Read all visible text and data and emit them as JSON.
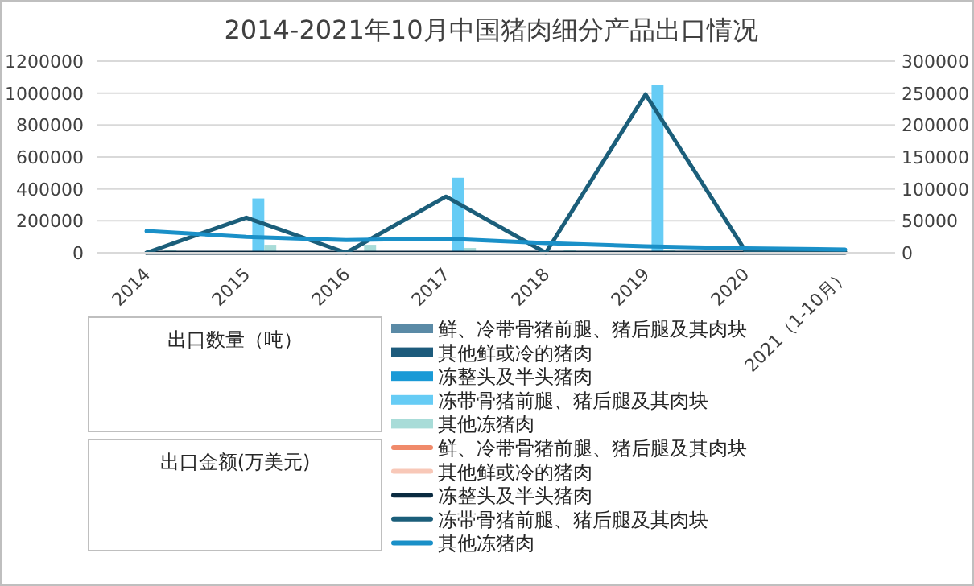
{
  "chart_data": {
    "type": "bar",
    "title": "2014-2021年10月中国猪肉细分产品出口情况",
    "categories": [
      "2014",
      "2015",
      "2016",
      "2017",
      "2018",
      "2019",
      "2020",
      "2021（1-10月）"
    ],
    "series": [
      {
        "name": "鲜、冷带骨猪前腿、猪后腿及其肉块",
        "color": "#5a8aa6",
        "axis": "y",
        "values": [
          0,
          0,
          0,
          0,
          0,
          0,
          0,
          0
        ]
      },
      {
        "name": "其他鲜或冷的猪肉",
        "color": "#1d5b7c",
        "axis": "y",
        "values": [
          0,
          0,
          0,
          0,
          0,
          0,
          0,
          0
        ]
      },
      {
        "name": "冻整头及半头猪肉",
        "color": "#1a9ad6",
        "axis": "y",
        "values": [
          0,
          0,
          0,
          0,
          0,
          0,
          0,
          0
        ]
      },
      {
        "name": "冻带骨猪前腿、猪后腿及其肉块",
        "color": "#66ccf5",
        "axis": "y",
        "values": [
          0,
          340000,
          0,
          470000,
          0,
          1050000,
          0,
          0
        ]
      },
      {
        "name": "其他冻猪肉",
        "color": "#a8dcd8",
        "axis": "y",
        "values": [
          20000,
          50000,
          50000,
          30000,
          20000,
          20000,
          10000,
          null
        ]
      },
      {
        "name": "鲜、冷带骨猪前腿、猪后腿及其肉块",
        "type": "line",
        "color": "#f08a6a",
        "axis": "y2",
        "values": [
          null,
          null,
          null,
          null,
          null,
          null,
          null,
          null
        ]
      },
      {
        "name": "其他鲜或冷的猪肉",
        "type": "line",
        "color": "#f8c8b8",
        "axis": "y2",
        "values": [
          null,
          null,
          null,
          null,
          null,
          null,
          null,
          null
        ]
      },
      {
        "name": "冻整头及半头猪肉",
        "type": "line",
        "color": "#0a2a40",
        "axis": "y2",
        "values": [
          0,
          0,
          0,
          0,
          0,
          0,
          0,
          0
        ]
      },
      {
        "name": "冻带骨猪前腿、猪后腿及其肉块",
        "type": "line",
        "color": "#1b5e7a",
        "axis": "y2",
        "values": [
          0,
          55000,
          0,
          88000,
          0,
          248000,
          3000,
          2000
        ]
      },
      {
        "name": "其他冻猪肉",
        "type": "line",
        "color": "#1a90c8",
        "axis": "y2",
        "values": [
          34000,
          25000,
          20000,
          22000,
          15000,
          10000,
          7000,
          5000
        ]
      }
    ],
    "ylim": [
      0,
      1200000
    ],
    "yticks": [
      0,
      200000,
      400000,
      600000,
      800000,
      1000000,
      1200000
    ],
    "y2lim": [
      0,
      300000
    ],
    "y2ticks": [
      0,
      50000,
      100000,
      150000,
      200000,
      250000,
      300000
    ],
    "grid": "y",
    "legend": "bottom",
    "annotations": [
      "出口数量（吨）",
      "出口金额(万美元)"
    ]
  }
}
